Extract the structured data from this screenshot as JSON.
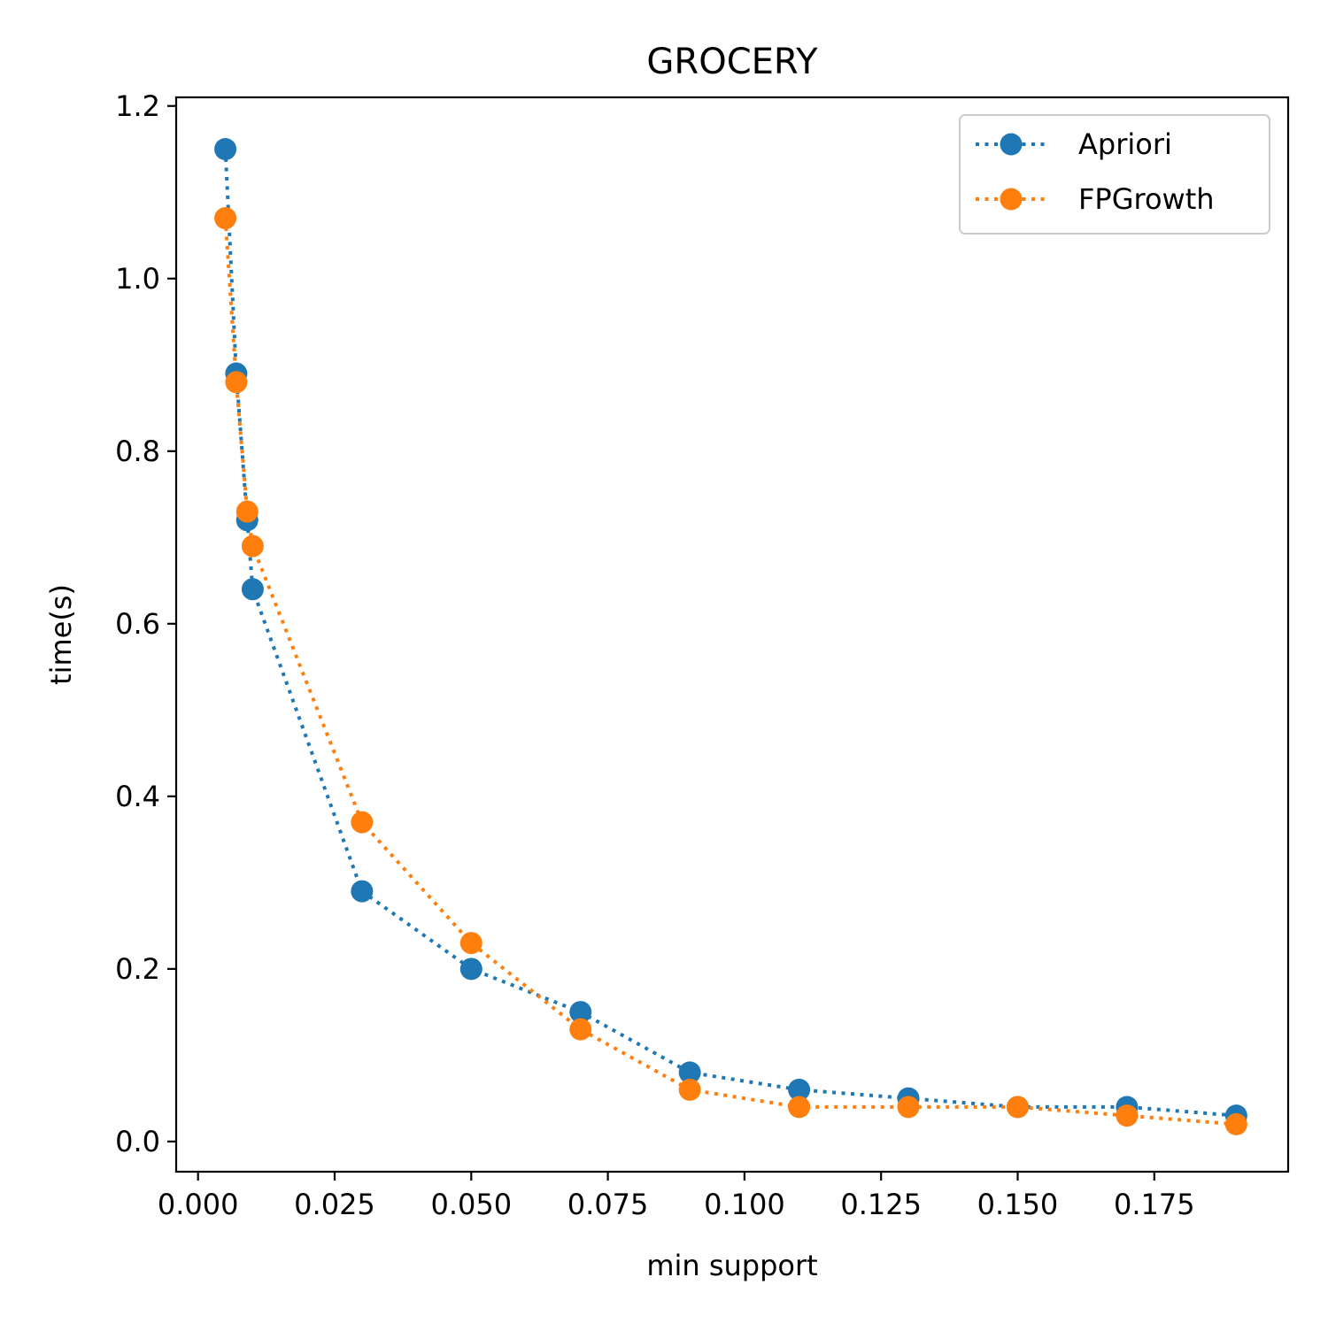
{
  "chart_data": {
    "type": "line",
    "title": "GROCERY",
    "xlabel": "min support",
    "ylabel": "time(s)",
    "xlim": [
      -0.004,
      0.1995
    ],
    "ylim": [
      -0.035,
      1.21
    ],
    "xticks": [
      0.0,
      0.025,
      0.05,
      0.075,
      0.1,
      0.125,
      0.15,
      0.175
    ],
    "xtick_labels": [
      "0.000",
      "0.025",
      "0.050",
      "0.075",
      "0.100",
      "0.125",
      "0.150",
      "0.175"
    ],
    "yticks": [
      0.0,
      0.2,
      0.4,
      0.6,
      0.8,
      1.0,
      1.2
    ],
    "ytick_labels": [
      "0.0",
      "0.2",
      "0.4",
      "0.6",
      "0.8",
      "1.0",
      "1.2"
    ],
    "grid": false,
    "legend_position": "top-right",
    "x": [
      0.005,
      0.007,
      0.009,
      0.01,
      0.03,
      0.05,
      0.07,
      0.09,
      0.11,
      0.13,
      0.15,
      0.17,
      0.19
    ],
    "series": [
      {
        "name": "Apriori",
        "color": "#1f77b4",
        "values": [
          1.15,
          0.89,
          0.72,
          0.64,
          0.29,
          0.2,
          0.15,
          0.08,
          0.06,
          0.05,
          0.04,
          0.04,
          0.03
        ]
      },
      {
        "name": "FPGrowth",
        "color": "#ff7f0e",
        "values": [
          1.07,
          0.88,
          0.73,
          0.69,
          0.37,
          0.23,
          0.13,
          0.06,
          0.04,
          0.04,
          0.04,
          0.03,
          0.02
        ]
      }
    ]
  }
}
